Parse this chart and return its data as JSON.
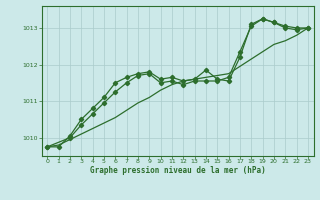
{
  "title": "Graphe pression niveau de la mer (hPa)",
  "bg_color": "#cce9e9",
  "line_color": "#2d6e2d",
  "grid_color": "#aacccc",
  "xlim": [
    -0.5,
    23.5
  ],
  "ylim": [
    1009.5,
    1013.6
  ],
  "yticks": [
    1010,
    1011,
    1012,
    1013
  ],
  "xticks": [
    0,
    1,
    2,
    3,
    4,
    5,
    6,
    7,
    8,
    9,
    10,
    11,
    12,
    13,
    14,
    15,
    16,
    17,
    18,
    19,
    20,
    21,
    22,
    23
  ],
  "series1_x": [
    0,
    1,
    2,
    3,
    4,
    5,
    6,
    7,
    8,
    9,
    10,
    11,
    12,
    13,
    14,
    15,
    16,
    17,
    18,
    19,
    20,
    21,
    22,
    23
  ],
  "series1_y": [
    1009.75,
    1009.75,
    1010.05,
    1010.5,
    1010.8,
    1011.1,
    1011.5,
    1011.65,
    1011.75,
    1011.8,
    1011.6,
    1011.65,
    1011.55,
    1011.6,
    1011.85,
    1011.6,
    1011.55,
    1012.2,
    1013.1,
    1013.25,
    1013.15,
    1013.05,
    1013.0,
    1013.0
  ],
  "series2_x": [
    0,
    2,
    3,
    4,
    5,
    6,
    7,
    8,
    9,
    10,
    11,
    12,
    13,
    14,
    15,
    16,
    17,
    18,
    19,
    20,
    21,
    22,
    23
  ],
  "series2_y": [
    1009.75,
    1010.0,
    1010.35,
    1010.65,
    1010.95,
    1011.25,
    1011.5,
    1011.7,
    1011.75,
    1011.5,
    1011.55,
    1011.45,
    1011.55,
    1011.55,
    1011.55,
    1011.65,
    1012.35,
    1013.05,
    1013.25,
    1013.15,
    1013.0,
    1012.95,
    1013.0
  ],
  "series3_x": [
    0,
    1,
    2,
    3,
    4,
    5,
    6,
    7,
    8,
    9,
    10,
    11,
    12,
    13,
    14,
    15,
    16,
    17,
    18,
    19,
    20,
    21,
    22,
    23
  ],
  "series3_y": [
    1009.75,
    1009.8,
    1009.95,
    1010.1,
    1010.25,
    1010.4,
    1010.55,
    1010.75,
    1010.95,
    1011.1,
    1011.3,
    1011.45,
    1011.55,
    1011.6,
    1011.65,
    1011.7,
    1011.75,
    1011.95,
    1012.15,
    1012.35,
    1012.55,
    1012.65,
    1012.8,
    1013.0
  ]
}
